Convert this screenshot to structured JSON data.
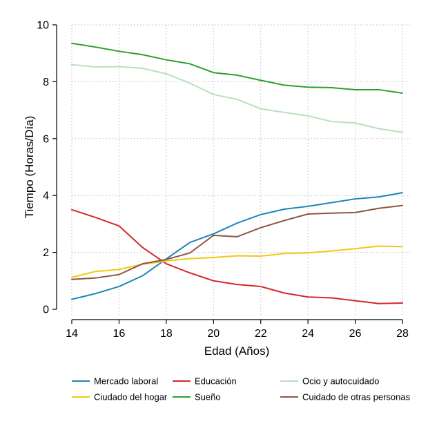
{
  "chart_data": {
    "type": "line",
    "title": "",
    "xlabel": "Edad (Años)",
    "ylabel": "Tiempo (Horas/Día)",
    "x": [
      14,
      15,
      16,
      17,
      18,
      19,
      20,
      21,
      22,
      23,
      24,
      25,
      26,
      27,
      28
    ],
    "xticks": [
      14,
      16,
      18,
      20,
      22,
      24,
      26,
      28
    ],
    "yticks": [
      0,
      2,
      4,
      6,
      8,
      10
    ],
    "xlim": [
      14,
      28
    ],
    "ylim": [
      0,
      10
    ],
    "grid": true,
    "legend_position": "bottom",
    "series": [
      {
        "name": "Mercado laboral",
        "color": "#1a87b8",
        "values": [
          0.35,
          0.55,
          0.8,
          1.18,
          1.77,
          2.35,
          2.65,
          3.03,
          3.33,
          3.52,
          3.62,
          3.75,
          3.88,
          3.95,
          4.1
        ]
      },
      {
        "name": "Educación",
        "color": "#d62728",
        "values": [
          3.5,
          3.23,
          2.93,
          2.17,
          1.6,
          1.28,
          1.0,
          0.87,
          0.8,
          0.57,
          0.43,
          0.4,
          0.3,
          0.2,
          0.22
        ]
      },
      {
        "name": "Ocio y autocuidado",
        "color": "#b9dfbb",
        "values": [
          8.6,
          8.52,
          8.53,
          8.47,
          8.28,
          7.95,
          7.55,
          7.38,
          7.05,
          6.92,
          6.8,
          6.6,
          6.55,
          6.35,
          6.22
        ]
      },
      {
        "name": "Ciudado del hogar",
        "color": "#f2c80f",
        "values": [
          1.12,
          1.33,
          1.4,
          1.58,
          1.7,
          1.78,
          1.82,
          1.88,
          1.87,
          1.96,
          1.98,
          2.05,
          2.13,
          2.22,
          2.2
        ]
      },
      {
        "name": "Sueño",
        "color": "#2ca02c",
        "values": [
          9.35,
          9.22,
          9.07,
          8.95,
          8.77,
          8.63,
          8.32,
          8.23,
          8.05,
          7.88,
          7.81,
          7.79,
          7.72,
          7.72,
          7.6
        ]
      },
      {
        "name": "Cuidado de otras personas",
        "color": "#8c5543",
        "values": [
          1.05,
          1.1,
          1.22,
          1.6,
          1.75,
          1.98,
          2.6,
          2.55,
          2.87,
          3.12,
          3.35,
          3.38,
          3.4,
          3.55,
          3.65
        ]
      }
    ]
  }
}
